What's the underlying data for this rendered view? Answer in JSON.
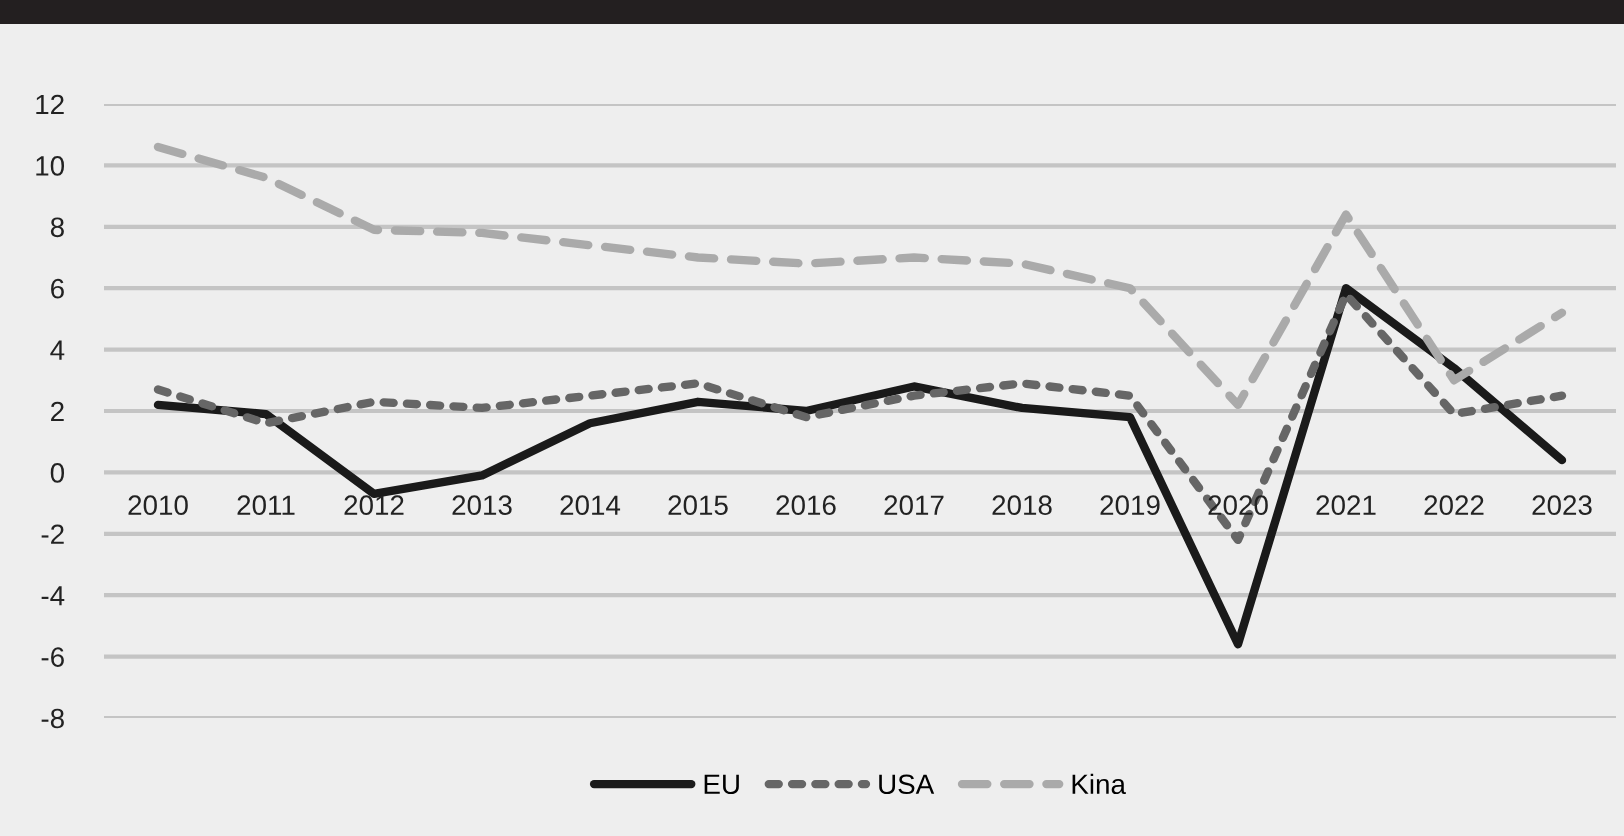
{
  "chart_data": {
    "type": "line",
    "categories": [
      "2010",
      "2011",
      "2012",
      "2013",
      "2014",
      "2015",
      "2016",
      "2017",
      "2018",
      "2019",
      "2020",
      "2021",
      "2022",
      "2023"
    ],
    "series": [
      {
        "name": "EU",
        "color": "#1a1a1a",
        "line_style": "solid",
        "values": [
          2.2,
          1.9,
          -0.7,
          -0.1,
          1.6,
          2.3,
          2.0,
          2.8,
          2.1,
          1.8,
          -5.6,
          6.0,
          3.4,
          0.4
        ]
      },
      {
        "name": "USA",
        "color": "#666666",
        "line_style": "dotted",
        "values": [
          2.7,
          1.6,
          2.3,
          2.1,
          2.5,
          2.9,
          1.8,
          2.5,
          2.9,
          2.5,
          -2.2,
          5.8,
          1.9,
          2.5
        ]
      },
      {
        "name": "Kina",
        "color": "#aaaaaa",
        "line_style": "dashed",
        "values": [
          10.6,
          9.6,
          7.9,
          7.8,
          7.4,
          7.0,
          6.8,
          7.0,
          6.8,
          6.0,
          2.2,
          8.4,
          3.0,
          5.2
        ]
      }
    ],
    "ylim": [
      -8,
      12
    ],
    "yticks": [
      -8,
      -6,
      -4,
      -2,
      0,
      2,
      4,
      6,
      8,
      10,
      12
    ],
    "grid": "y",
    "legend": "bottom",
    "marker": "none"
  }
}
